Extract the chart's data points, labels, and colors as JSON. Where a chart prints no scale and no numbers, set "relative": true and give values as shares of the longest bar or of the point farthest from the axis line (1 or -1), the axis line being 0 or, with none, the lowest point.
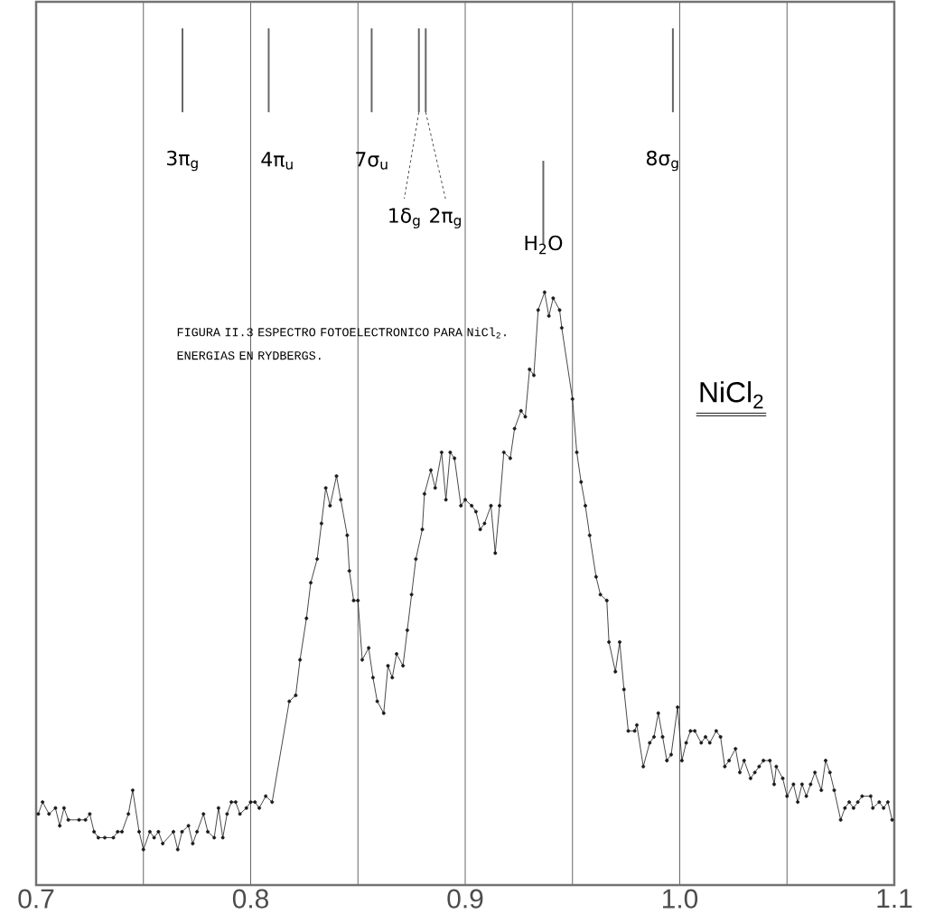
{
  "chart_data": {
    "type": "line",
    "relative": true,
    "marker": "circle",
    "line_style": "solid",
    "grid": "x",
    "color": "#1a1a1a",
    "xlim": [
      0.7,
      1.1
    ],
    "xticks": [
      0.7,
      {
        "value": 0.75,
        "label": null
      },
      0.8,
      {
        "value": 0.85,
        "label": null
      },
      0.9,
      {
        "value": 0.95,
        "label": null
      },
      {
        "value": 1.0,
        "label": "1.0"
      },
      {
        "value": 1.05,
        "label": null
      },
      1.1
    ],
    "x": [
      0.701,
      0.703,
      0.706,
      0.709,
      0.711,
      0.713,
      0.715,
      0.72,
      0.723,
      0.725,
      0.727,
      0.729,
      0.732,
      0.736,
      0.738,
      0.74,
      0.743,
      0.745,
      0.748,
      0.75,
      0.753,
      0.755,
      0.757,
      0.759,
      0.764,
      0.766,
      0.768,
      0.771,
      0.773,
      0.775,
      0.778,
      0.78,
      0.783,
      0.785,
      0.787,
      0.789,
      0.791,
      0.793,
      0.795,
      0.798,
      0.8,
      0.802,
      0.804,
      0.807,
      0.81,
      0.818,
      0.821,
      0.823,
      0.826,
      0.828,
      0.831,
      0.833,
      0.835,
      0.837,
      0.84,
      0.842,
      0.845,
      0.846,
      0.848,
      0.85,
      0.852,
      0.855,
      0.857,
      0.859,
      0.862,
      0.864,
      0.866,
      0.868,
      0.871,
      0.873,
      0.875,
      0.877,
      0.88,
      0.881,
      0.884,
      0.886,
      0.889,
      0.891,
      0.893,
      0.895,
      0.898,
      0.9,
      0.903,
      0.905,
      0.907,
      0.909,
      0.912,
      0.914,
      0.916,
      0.918,
      0.921,
      0.923,
      0.926,
      0.928,
      0.93,
      0.932,
      0.934,
      0.937,
      0.939,
      0.941,
      0.944,
      0.945,
      0.95,
      0.952,
      0.954,
      0.956,
      0.958,
      0.961,
      0.963,
      0.966,
      0.967,
      0.97,
      0.972,
      0.974,
      0.976,
      0.979,
      0.98,
      0.983,
      0.986,
      0.988,
      0.99,
      0.992,
      0.994,
      0.996,
      0.999,
      1.001,
      1.003,
      1.005,
      1.007,
      1.01,
      1.012,
      1.014,
      1.017,
      1.019,
      1.021,
      1.023,
      1.026,
      1.028,
      1.03,
      1.033,
      1.035,
      1.037,
      1.039,
      1.042,
      1.044,
      1.045,
      1.048,
      1.05,
      1.053,
      1.055,
      1.057,
      1.059,
      1.061,
      1.063,
      1.066,
      1.068,
      1.07,
      1.072,
      1.075,
      1.077,
      1.079,
      1.081,
      1.083,
      1.085,
      1.089,
      1.09,
      1.093,
      1.095,
      1.097,
      1.099
    ],
    "values": [
      0.12,
      0.14,
      0.12,
      0.13,
      0.1,
      0.13,
      0.11,
      0.11,
      0.11,
      0.12,
      0.09,
      0.08,
      0.08,
      0.08,
      0.09,
      0.09,
      0.12,
      0.16,
      0.09,
      0.06,
      0.09,
      0.08,
      0.09,
      0.07,
      0.09,
      0.06,
      0.09,
      0.1,
      0.07,
      0.09,
      0.12,
      0.09,
      0.08,
      0.13,
      0.08,
      0.12,
      0.14,
      0.14,
      0.12,
      0.13,
      0.14,
      0.14,
      0.13,
      0.15,
      0.14,
      0.31,
      0.32,
      0.38,
      0.45,
      0.51,
      0.55,
      0.61,
      0.67,
      0.64,
      0.69,
      0.65,
      0.59,
      0.53,
      0.48,
      0.48,
      0.38,
      0.4,
      0.35,
      0.31,
      0.29,
      0.37,
      0.35,
      0.39,
      0.37,
      0.43,
      0.49,
      0.55,
      0.6,
      0.66,
      0.7,
      0.67,
      0.73,
      0.65,
      0.73,
      0.72,
      0.64,
      0.65,
      0.64,
      0.63,
      0.6,
      0.61,
      0.64,
      0.56,
      0.64,
      0.73,
      0.72,
      0.77,
      0.8,
      0.79,
      0.87,
      0.86,
      0.97,
      1.0,
      0.96,
      0.99,
      0.97,
      0.94,
      0.82,
      0.73,
      0.68,
      0.64,
      0.59,
      0.52,
      0.49,
      0.48,
      0.41,
      0.36,
      0.41,
      0.33,
      0.26,
      0.26,
      0.27,
      0.2,
      0.24,
      0.25,
      0.29,
      0.25,
      0.21,
      0.22,
      0.3,
      0.21,
      0.24,
      0.26,
      0.26,
      0.24,
      0.25,
      0.24,
      0.26,
      0.25,
      0.2,
      0.21,
      0.23,
      0.19,
      0.21,
      0.18,
      0.19,
      0.2,
      0.21,
      0.21,
      0.17,
      0.2,
      0.18,
      0.15,
      0.17,
      0.14,
      0.17,
      0.15,
      0.17,
      0.19,
      0.16,
      0.21,
      0.19,
      0.16,
      0.11,
      0.13,
      0.14,
      0.13,
      0.14,
      0.15,
      0.15,
      0.13,
      0.14,
      0.13,
      0.14,
      0.11
    ],
    "annotations": [
      "3π$_{g}$",
      "4π$_{u}$",
      "7σ$_{u}$",
      "1δ$_{g}$",
      "2π$_{g}$",
      "H$_{2}$O",
      "8σ$_{g}$",
      "FIGURA II.3  ESPECTRO FOTOELECTRONICO PARA NiCl$_{2}$. ENERGIAS EN RYDBERGS.",
      "NiCl$_{2}$"
    ]
  }
}
